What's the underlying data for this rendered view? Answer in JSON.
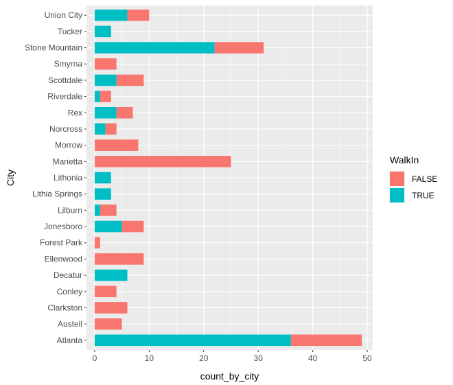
{
  "chart_data": {
    "type": "bar",
    "orientation": "horizontal",
    "stacked": true,
    "xlabel": "count_by_city",
    "ylabel": "City",
    "xlim": [
      -1.5,
      51
    ],
    "xticks": [
      0,
      10,
      20,
      30,
      40,
      50
    ],
    "grid": true,
    "categories": [
      "Atlanta",
      "Austell",
      "Clarkston",
      "Conley",
      "Decatur",
      "Ellenwood",
      "Forest Park",
      "Jonesboro",
      "Lilburn",
      "Lithia Springs",
      "Lithonia",
      "Marietta",
      "Morrow",
      "Norcross",
      "Rex",
      "Riverdale",
      "Scottdale",
      "Smyrna",
      "Stone Mountain",
      "Tucker",
      "Union City"
    ],
    "series": [
      {
        "name": "TRUE",
        "color": "#00BFC4",
        "values": [
          36,
          0,
          0,
          0,
          6,
          0,
          0,
          5,
          1,
          3,
          3,
          0,
          0,
          2,
          4,
          1,
          4,
          0,
          22,
          3,
          6
        ]
      },
      {
        "name": "FALSE",
        "color": "#F8766D",
        "values": [
          13,
          5,
          6,
          4,
          0,
          9,
          1,
          4,
          3,
          0,
          0,
          25,
          8,
          2,
          3,
          2,
          5,
          4,
          9,
          0,
          4
        ]
      }
    ],
    "legend": {
      "title": "WalkIn",
      "position": "right",
      "entries": [
        {
          "label": "FALSE",
          "color": "#F8766D"
        },
        {
          "label": "TRUE",
          "color": "#00BFC4"
        }
      ]
    },
    "panel_color": "#EBEBEB",
    "grid_color": "#FFFFFF"
  }
}
